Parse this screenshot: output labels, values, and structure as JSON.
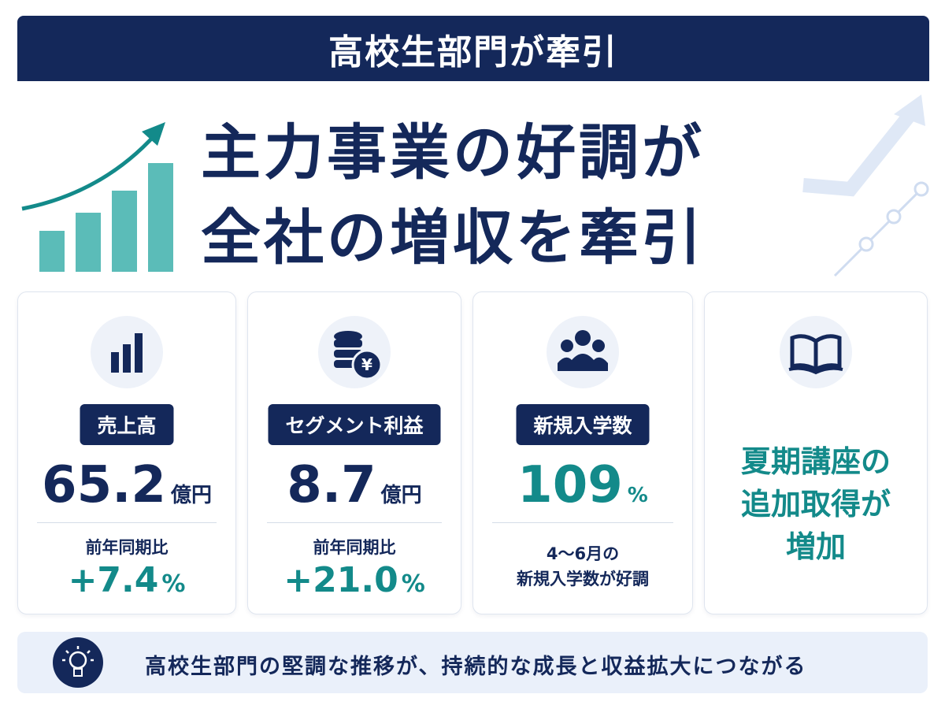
{
  "banner": {
    "title": "高校生部門が牽引"
  },
  "headline": {
    "lines": [
      "主力事業の好調が",
      "全社の増収を牽引"
    ]
  },
  "cards": [
    {
      "label": "売上高",
      "value": "65.2",
      "unit": "億円",
      "note": "前年同期比",
      "change": "+7.4",
      "change_unit": "%"
    },
    {
      "label": "セグメント利益",
      "value": "8.7",
      "unit": "億円",
      "note": "前年同期比",
      "change": "+21.0",
      "change_unit": "%"
    },
    {
      "label": "新規入学数",
      "value": "109",
      "unit": "%",
      "note_lines": [
        "4～6月の",
        "新規入学数が好調"
      ]
    },
    {
      "text_lines": [
        "夏期講座の",
        "追加取得が",
        "増加"
      ]
    }
  ],
  "footer": {
    "text": "高校生部門の堅調な推移が、持続的な成長と収益拡大につながる"
  }
}
